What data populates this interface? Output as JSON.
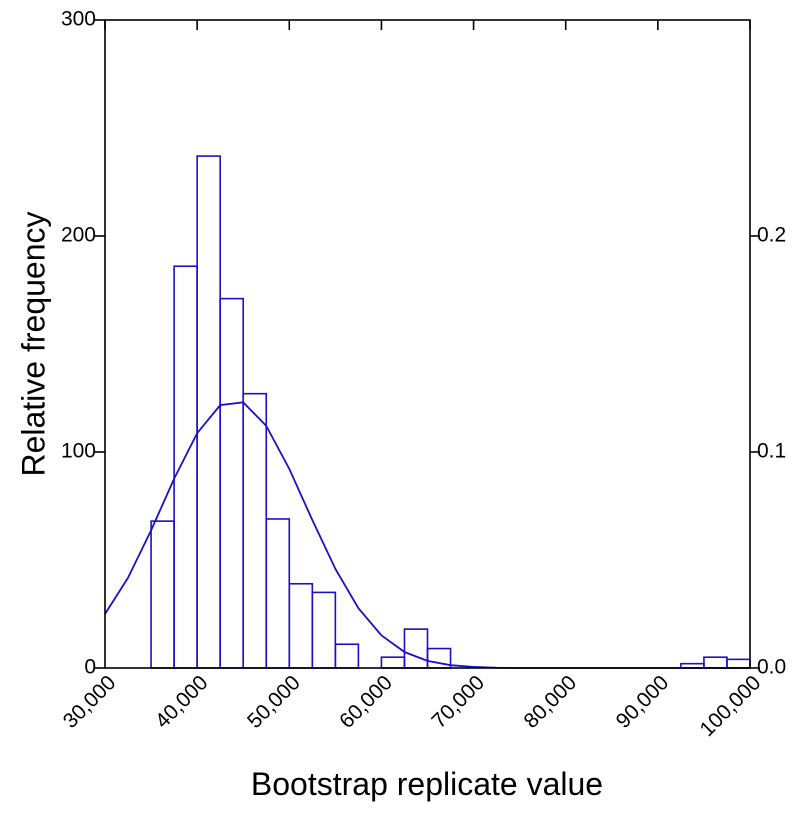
{
  "chart_data": {
    "type": "histogram",
    "xlabel": "Bootstrap replicate value",
    "ylabel": "Relative frequency",
    "bins": [
      35000,
      37500,
      40000,
      42500,
      45000,
      47500,
      50000,
      52500,
      55000,
      57500,
      60000,
      62500,
      65000,
      67500,
      70000,
      72500,
      75000,
      77500,
      80000,
      82500,
      85000,
      87500,
      90000,
      92500,
      95000,
      97500,
      100000
    ],
    "counts": [
      68,
      186,
      237,
      171,
      127,
      69,
      39,
      35,
      11,
      0,
      5,
      18,
      9,
      0,
      0,
      0,
      0,
      0,
      0,
      0,
      0,
      0,
      0,
      2,
      5,
      4
    ],
    "color": "#1a10c8",
    "curve": {
      "color": "#1a10c8",
      "x": [
        30000,
        32500,
        35000,
        37500,
        40000,
        42500,
        45000,
        47500,
        50000,
        52500,
        55000,
        57500,
        60000,
        62500,
        65000,
        67500,
        70000,
        72500,
        75000,
        80000,
        90000,
        100000
      ],
      "values": [
        25.0,
        41.8,
        63.7,
        87.6,
        108.7,
        121.7,
        123.0,
        112.1,
        92.2,
        68.5,
        45.9,
        27.7,
        15.1,
        7.4,
        3.3,
        1.3,
        0.5,
        0.1,
        0,
        0,
        0,
        0
      ]
    },
    "xlim": [
      30000,
      100000
    ],
    "xticks": [
      {
        "value": 30000,
        "label": "30,000"
      },
      {
        "value": 40000,
        "label": "40,000"
      },
      {
        "value": 50000,
        "label": "50,000"
      },
      {
        "value": 60000,
        "label": "60,000"
      },
      {
        "value": 70000,
        "label": "70,000"
      },
      {
        "value": 80000,
        "label": "80,000"
      },
      {
        "value": 90000,
        "label": "90,000"
      },
      {
        "value": 100000,
        "label": "100,000"
      }
    ],
    "ylim": [
      0,
      300
    ],
    "yticks": [
      0,
      100,
      200,
      300
    ],
    "y2lim": [
      0,
      0.3
    ],
    "y2ticks": [
      {
        "value": 0,
        "label": "0.0"
      },
      0.1,
      0.2
    ]
  }
}
